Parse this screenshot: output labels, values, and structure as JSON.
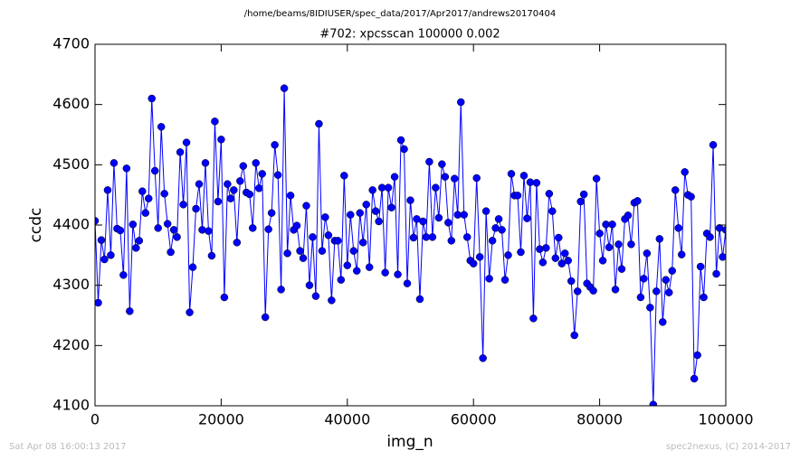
{
  "chart_data": {
    "type": "line",
    "suptitle": "/home/beams/8IDIUSER/spec_data/2017/Apr2017/andrews20170404",
    "title": "#702: xpcsscan 100000 0.002",
    "x_label": "img_n",
    "y_label": "ccdc",
    "footer_left": "Sat Apr 08 16:00:13 2017",
    "footer_right": "spec2nexus, (C) 2014-2017",
    "color": "#0000ff",
    "xlim": [
      0,
      100000
    ],
    "xticks": [
      0,
      20000,
      40000,
      60000,
      80000,
      100000
    ],
    "ylim": [
      4100,
      4700
    ],
    "yticks": [
      4100,
      4200,
      4300,
      4400,
      4500,
      4600,
      4700
    ],
    "grid": false,
    "x": [
      0,
      500,
      1000,
      1500,
      2000,
      2500,
      3000,
      3500,
      4000,
      4500,
      5000,
      5500,
      6000,
      6500,
      7000,
      7500,
      8000,
      8500,
      9000,
      9500,
      10000,
      10500,
      11000,
      11500,
      12000,
      12500,
      13000,
      13500,
      14000,
      14500,
      15000,
      15500,
      16000,
      16500,
      17000,
      17500,
      18000,
      18500,
      19000,
      19500,
      20000,
      20500,
      21000,
      21500,
      22000,
      22500,
      23000,
      23500,
      24000,
      24500,
      25000,
      25500,
      26000,
      26500,
      27000,
      27500,
      28000,
      28500,
      29000,
      29500,
      30000,
      30500,
      31000,
      31500,
      32000,
      32500,
      33000,
      33500,
      34000,
      34500,
      35000,
      35500,
      36000,
      36500,
      37000,
      37500,
      38000,
      38500,
      39000,
      39500,
      40000,
      40500,
      41000,
      41500,
      42000,
      42500,
      43000,
      43500,
      44000,
      44500,
      45000,
      45500,
      46000,
      46500,
      47000,
      47500,
      48000,
      48500,
      49000,
      49500,
      50000,
      50500,
      51000,
      51500,
      52000,
      52500,
      53000,
      53500,
      54000,
      54500,
      55000,
      55500,
      56000,
      56500,
      57000,
      57500,
      58000,
      58500,
      59000,
      59500,
      60000,
      60500,
      61000,
      61500,
      62000,
      62500,
      63000,
      63500,
      64000,
      64500,
      65000,
      65500,
      66000,
      66500,
      67000,
      67500,
      68000,
      68500,
      69000,
      69500,
      70000,
      70500,
      71000,
      71500,
      72000,
      72500,
      73000,
      73500,
      74000,
      74500,
      75000,
      75500,
      76000,
      76500,
      77000,
      77500,
      78000,
      78500,
      79000,
      79500,
      80000,
      80500,
      81000,
      81500,
      82000,
      82500,
      83000,
      83500,
      84000,
      84500,
      85000,
      85500,
      86000,
      86500,
      87000,
      87500,
      88000,
      88500,
      89000,
      89500,
      90000,
      90500,
      91000,
      91500,
      92000,
      92500,
      93000,
      93500,
      94000,
      94500,
      95000,
      95500,
      96000,
      96500,
      97000,
      97500,
      98000,
      98500,
      99000,
      99500,
      100000
    ],
    "values": [
      4407,
      4271,
      4375,
      4343,
      4458,
      4350,
      4503,
      4394,
      4391,
      4317,
      4494,
      4257,
      4401,
      4362,
      4374,
      4456,
      4420,
      4444,
      4610,
      4490,
      4395,
      4563,
      4452,
      4402,
      4355,
      4392,
      4380,
      4521,
      4434,
      4537,
      4255,
      4330,
      4427,
      4468,
      4392,
      4503,
      4390,
      4349,
      4572,
      4439,
      4542,
      4280,
      4468,
      4444,
      4458,
      4371,
      4473,
      4498,
      4454,
      4451,
      4395,
      4503,
      4461,
      4485,
      4247,
      4393,
      4420,
      4533,
      4483,
      4293,
      4627,
      4353,
      4449,
      4392,
      4399,
      4357,
      4345,
      4432,
      4300,
      4380,
      4282,
      4568,
      4357,
      4413,
      4383,
      4275,
      4374,
      4374,
      4309,
      4482,
      4333,
      4417,
      4357,
      4324,
      4420,
      4371,
      4434,
      4330,
      4458,
      4423,
      4406,
      4462,
      4321,
      4462,
      4429,
      4480,
      4318,
      4541,
      4526,
      4303,
      4441,
      4379,
      4410,
      4277,
      4406,
      4380,
      4505,
      4380,
      4462,
      4412,
      4501,
      4480,
      4404,
      4374,
      4477,
      4417,
      4604,
      4417,
      4380,
      4341,
      4336,
      4478,
      4347,
      4179,
      4423,
      4311,
      4374,
      4395,
      4410,
      4392,
      4309,
      4350,
      4485,
      4449,
      4449,
      4355,
      4482,
      4411,
      4471,
      4245,
      4470,
      4360,
      4338,
      4362,
      4452,
      4423,
      4345,
      4379,
      4336,
      4353,
      4341,
      4307,
      4217,
      4290,
      4439,
      4451,
      4303,
      4297,
      4291,
      4477,
      4386,
      4341,
      4401,
      4363,
      4401,
      4293,
      4368,
      4327,
      4410,
      4416,
      4368,
      4437,
      4440,
      4280,
      4311,
      4353,
      4263,
      4102,
      4290,
      4377,
      4239,
      4309,
      4288,
      4324,
      4458,
      4395,
      4351,
      4488,
      4450,
      4447,
      4145,
      4184,
      4331,
      4280,
      4386,
      4380,
      4533,
      4319,
      4395,
      4347,
      4392
    ]
  }
}
